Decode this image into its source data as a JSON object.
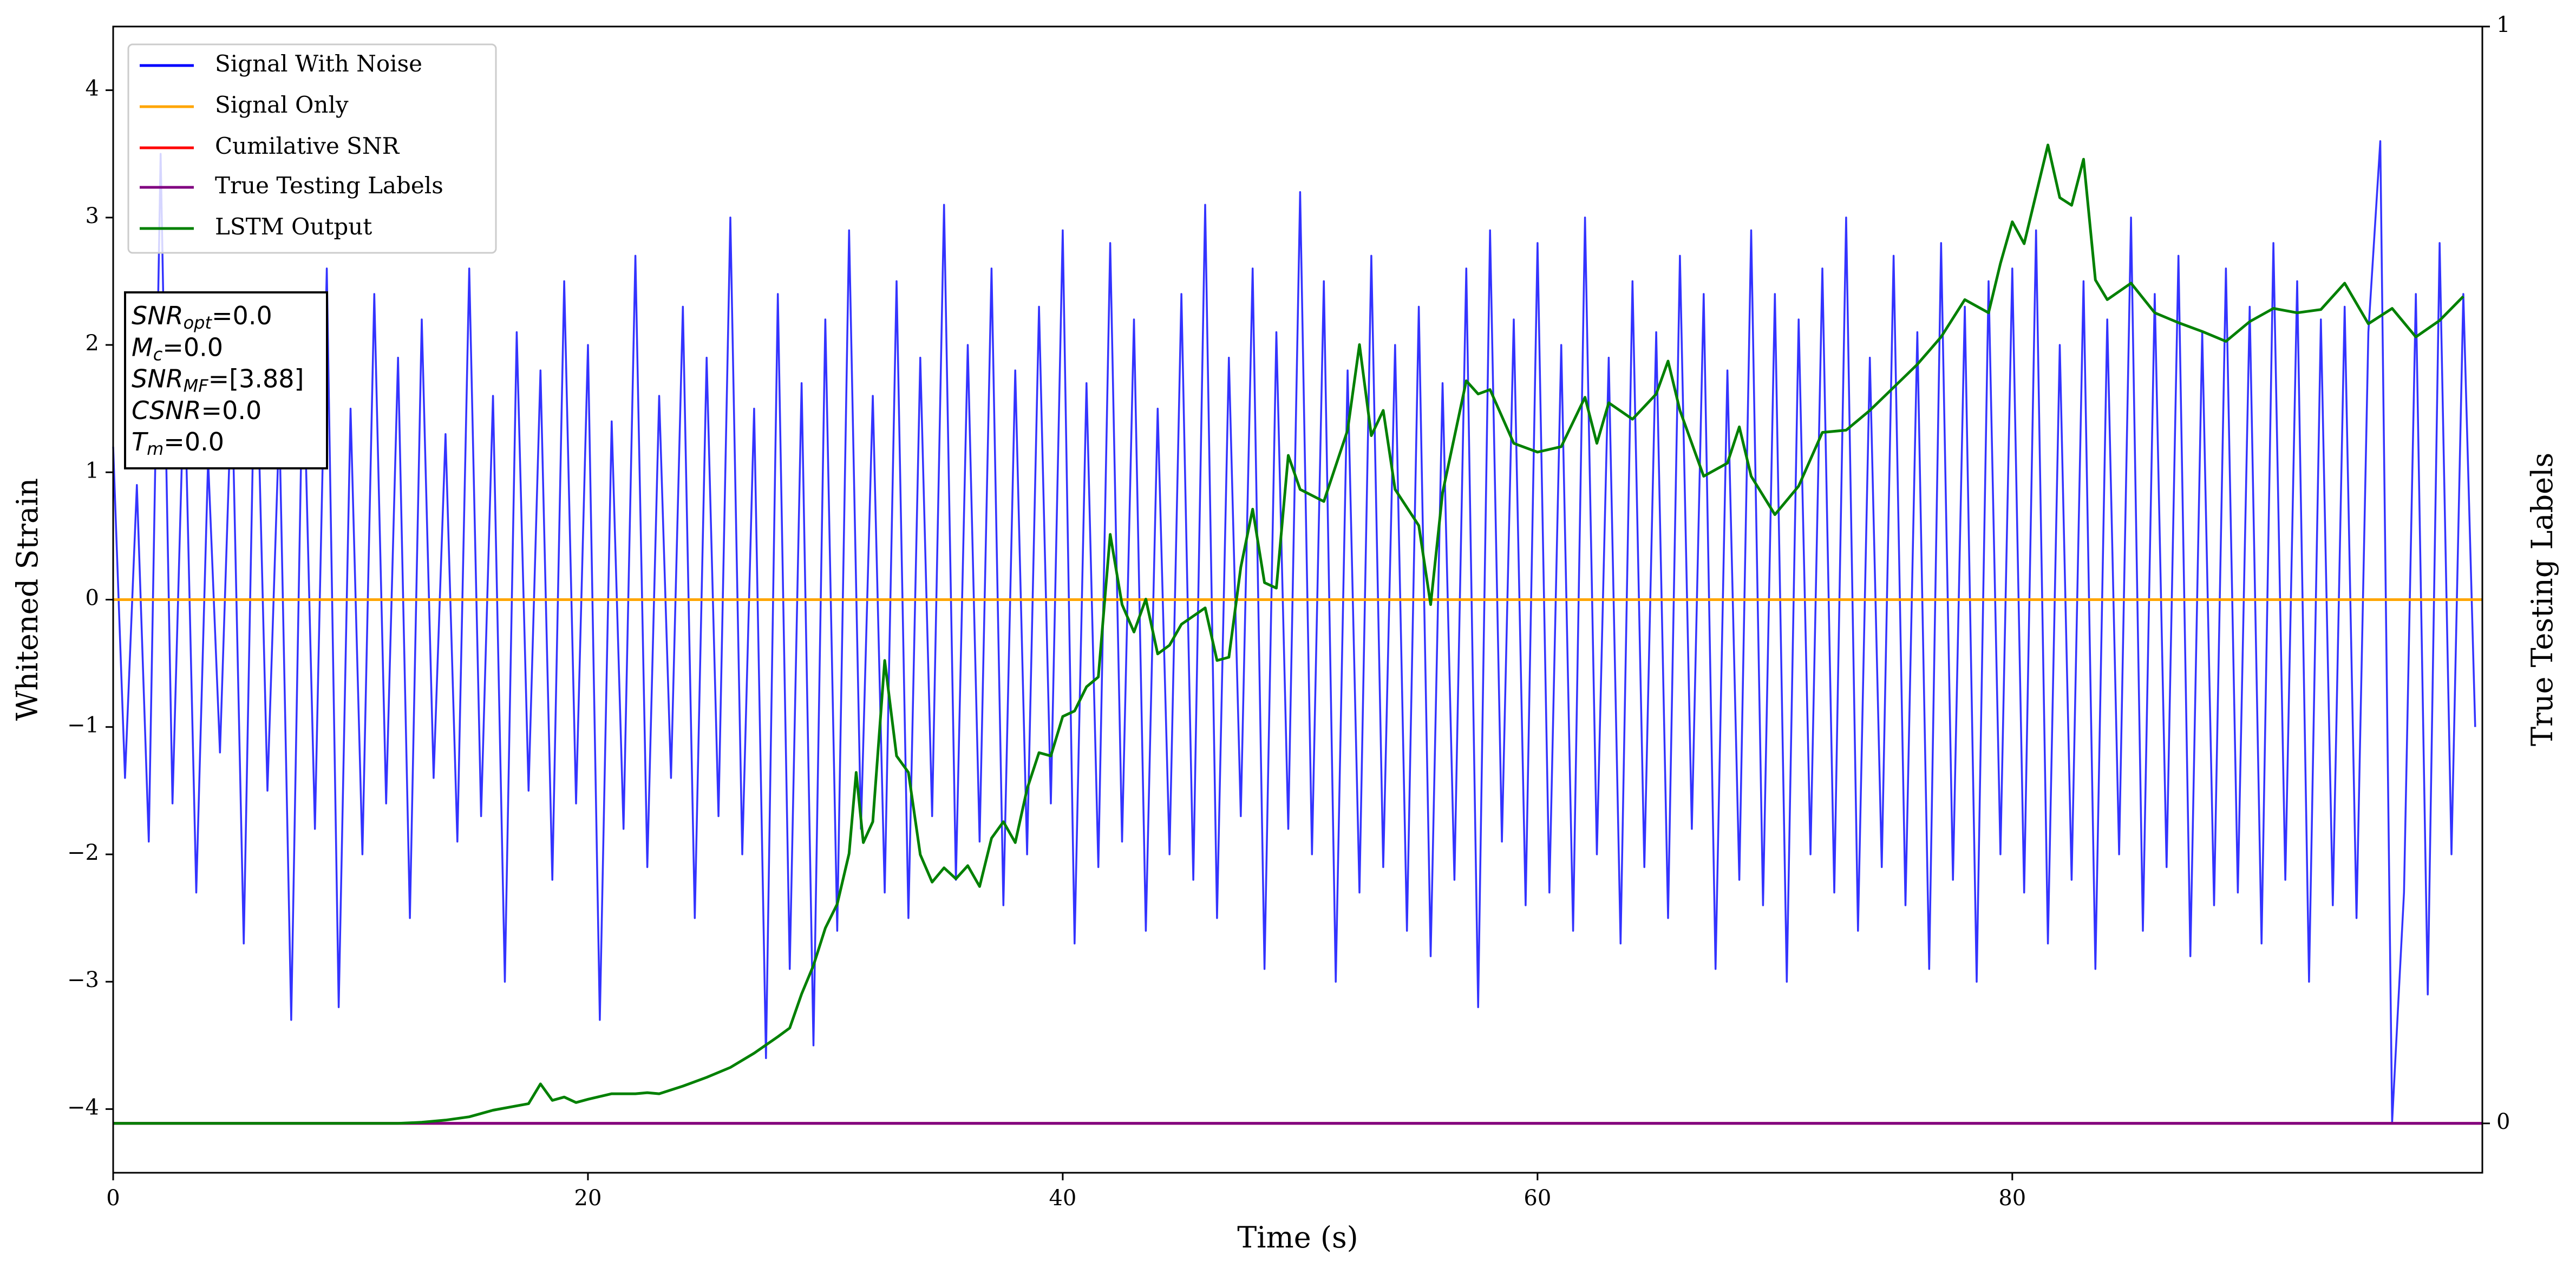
{
  "chart_data": {
    "type": "line",
    "xlabel": "Time (s)",
    "ylabel": "Whitened Strain",
    "y2label": "True Testing Labels",
    "xlim": [
      0,
      99.8
    ],
    "ylim": [
      -4.5,
      4.5
    ],
    "y2lim": [
      -0.045,
      1.0
    ],
    "xticks": [
      0,
      20,
      40,
      60,
      80
    ],
    "yticks": [
      {
        "value": -4,
        "label": "−4"
      },
      {
        "value": -3,
        "label": "−3"
      },
      {
        "value": -2,
        "label": "−2"
      },
      {
        "value": -1,
        "label": "−1"
      },
      0,
      1,
      2,
      3,
      4
    ],
    "y2ticks": [
      0,
      1
    ],
    "legend": "upper left",
    "annotation": [
      {
        "base": "SNR",
        "sub": "opt",
        "text": "=0.0"
      },
      {
        "base": "M",
        "sub": "c",
        "text": "=0.0"
      },
      {
        "base": "SNR",
        "sub": "MF",
        "text": "=[3.88]"
      },
      {
        "base": "CSNR",
        "text": "=0.0"
      },
      {
        "base": "T",
        "sub": "m",
        "text": "=0.0"
      }
    ],
    "series": [
      {
        "name": "Signal With Noise",
        "color": "#0000ff",
        "axis": "y",
        "x": [
          0,
          0.5,
          1,
          1.5,
          2,
          2.5,
          3,
          3.5,
          4,
          4.5,
          5,
          5.5,
          6,
          6.5,
          7,
          7.5,
          8,
          8.5,
          9,
          9.5,
          10,
          10.5,
          11,
          11.5,
          12,
          12.5,
          13,
          13.5,
          14,
          14.5,
          15,
          15.5,
          16,
          16.5,
          17,
          17.5,
          18,
          18.5,
          19,
          19.5,
          20,
          20.5,
          21,
          21.5,
          22,
          22.5,
          23,
          23.5,
          24,
          24.5,
          25,
          25.5,
          26,
          26.5,
          27,
          27.5,
          28,
          28.5,
          29,
          29.5,
          30,
          30.5,
          31,
          31.5,
          32,
          32.5,
          33,
          33.5,
          34,
          34.5,
          35,
          35.5,
          36,
          36.5,
          37,
          37.5,
          38,
          38.5,
          39,
          39.5,
          40,
          40.5,
          41,
          41.5,
          42,
          42.5,
          43,
          43.5,
          44,
          44.5,
          45,
          45.5,
          46,
          46.5,
          47,
          47.5,
          48,
          48.5,
          49,
          49.5,
          50,
          50.5,
          51,
          51.5,
          52,
          52.5,
          53,
          53.5,
          54,
          54.5,
          55,
          55.5,
          56,
          56.5,
          57,
          57.5,
          58,
          58.5,
          59,
          59.5,
          60,
          60.5,
          61,
          61.5,
          62,
          62.5,
          63,
          63.5,
          64,
          64.5,
          65,
          65.5,
          66,
          66.5,
          67,
          67.5,
          68,
          68.5,
          69,
          69.5,
          70,
          70.5,
          71,
          71.5,
          72,
          72.5,
          73,
          73.5,
          74,
          74.5,
          75,
          75.5,
          76,
          76.5,
          77,
          77.5,
          78,
          78.5,
          79,
          79.5,
          80,
          80.5,
          81,
          81.5,
          82,
          82.5,
          83,
          83.5,
          84,
          84.5,
          85,
          85.5,
          86,
          86.5,
          87,
          87.5,
          88,
          88.5,
          89,
          89.5,
          90,
          90.5,
          91,
          91.5,
          92,
          92.5,
          93,
          93.5,
          94,
          94.5,
          95,
          95.5,
          96,
          96.5,
          97,
          97.5,
          98,
          98.5,
          99,
          99.5
        ],
        "values": [
          1.2,
          -1.4,
          0.9,
          -1.9,
          3.5,
          -1.6,
          1.8,
          -2.3,
          1.1,
          -1.2,
          1.7,
          -2.7,
          2.3,
          -1.5,
          1.4,
          -3.3,
          2.0,
          -1.8,
          2.6,
          -3.2,
          1.5,
          -2.0,
          2.4,
          -1.6,
          1.9,
          -2.5,
          2.2,
          -1.4,
          1.3,
          -1.9,
          2.6,
          -1.7,
          1.6,
          -3.0,
          2.1,
          -1.5,
          1.8,
          -2.2,
          2.5,
          -1.6,
          2.0,
          -3.3,
          1.4,
          -1.8,
          2.7,
          -2.1,
          1.6,
          -1.4,
          2.3,
          -2.5,
          1.9,
          -1.7,
          3.0,
          -2.0,
          1.5,
          -3.6,
          2.4,
          -2.9,
          1.7,
          -3.5,
          2.2,
          -2.6,
          2.9,
          -1.8,
          1.6,
          -2.3,
          2.5,
          -2.5,
          1.9,
          -1.7,
          3.1,
          -2.2,
          2.0,
          -1.9,
          2.6,
          -2.4,
          1.8,
          -2.0,
          2.3,
          -1.6,
          2.9,
          -2.7,
          1.7,
          -2.1,
          2.8,
          -1.9,
          2.2,
          -2.6,
          1.5,
          -2.0,
          2.4,
          -2.2,
          3.1,
          -2.5,
          1.9,
          -1.7,
          2.6,
          -2.9,
          2.1,
          -1.8,
          3.2,
          -2.0,
          2.5,
          -3.0,
          1.8,
          -2.3,
          2.7,
          -2.1,
          2.0,
          -2.6,
          2.3,
          -2.8,
          1.7,
          -2.2,
          2.6,
          -3.2,
          2.9,
          -1.9,
          2.2,
          -2.4,
          2.8,
          -2.3,
          2.0,
          -2.6,
          3.0,
          -2.0,
          1.9,
          -2.7,
          2.5,
          -2.1,
          2.1,
          -2.5,
          2.7,
          -1.8,
          2.4,
          -2.9,
          1.8,
          -2.2,
          2.9,
          -2.4,
          2.4,
          -3.0,
          2.2,
          -2.0,
          2.6,
          -2.3,
          3.0,
          -2.6,
          1.9,
          -2.1,
          2.7,
          -2.4,
          2.1,
          -2.9,
          2.8,
          -2.2,
          2.3,
          -3.0,
          2.5,
          -2.0,
          2.6,
          -2.3,
          2.9,
          -2.7,
          2.0,
          -2.2,
          2.5,
          -2.9,
          2.2,
          -2.0,
          3.0,
          -2.6,
          2.4,
          -2.1,
          2.7,
          -2.8,
          2.1,
          -2.4,
          2.6,
          -2.3,
          2.3,
          -2.7,
          2.8,
          -2.2,
          2.5,
          -3.0,
          2.2,
          -2.4,
          2.3,
          -2.5,
          2.1,
          3.6,
          -4.1,
          -2.3,
          2.4,
          -3.1,
          2.8,
          -2.0,
          2.4,
          -1.0
        ]
      },
      {
        "name": "Signal Only",
        "color": "#ffa500",
        "axis": "y",
        "x": [
          0,
          99.8
        ],
        "values": [
          0,
          0
        ]
      },
      {
        "name": "Cumilative SNR",
        "color": "#ff0000",
        "axis": "y2",
        "x": [
          0,
          99.8
        ],
        "values": [
          0,
          0
        ]
      },
      {
        "name": "True Testing Labels",
        "color": "#800080",
        "axis": "y2",
        "x": [
          0,
          99.8
        ],
        "values": [
          0,
          0
        ]
      },
      {
        "name": "LSTM Output",
        "color": "#008000",
        "axis": "y2",
        "x": [
          0,
          12,
          13,
          14,
          15,
          16,
          17,
          17.5,
          18,
          18.5,
          19,
          19.5,
          20,
          21,
          22,
          22.5,
          23,
          24,
          25,
          26,
          27,
          28,
          28.5,
          29,
          29.5,
          30,
          30.5,
          31,
          31.3,
          31.6,
          32,
          32.5,
          33,
          33.5,
          34,
          34.5,
          35,
          35.5,
          36,
          36.5,
          37,
          37.5,
          38,
          38.5,
          39,
          39.5,
          40,
          40.5,
          41,
          41.5,
          42,
          42.5,
          43,
          43.5,
          44,
          44.5,
          45,
          46,
          46.5,
          47,
          47.5,
          48,
          48.5,
          49,
          49.5,
          50,
          51,
          52,
          52.5,
          53,
          53.5,
          54,
          55,
          55.5,
          56,
          57,
          57.5,
          58,
          59,
          60,
          61,
          62,
          62.5,
          63,
          64,
          65,
          65.5,
          66,
          67,
          68,
          68.5,
          69,
          70,
          71,
          72,
          73,
          74,
          75,
          76,
          77,
          78,
          79,
          79.5,
          80,
          80.5,
          81.5,
          82,
          82.5,
          83,
          83.5,
          84,
          85,
          86,
          87,
          88,
          89,
          90,
          91,
          92,
          93,
          94,
          95,
          96,
          97,
          98,
          99
        ],
        "values": [
          0,
          0,
          0.001,
          0.003,
          0.006,
          0.012,
          0.016,
          0.018,
          0.036,
          0.021,
          0.024,
          0.019,
          0.022,
          0.027,
          0.027,
          0.028,
          0.027,
          0.034,
          0.042,
          0.051,
          0.064,
          0.079,
          0.087,
          0.118,
          0.144,
          0.178,
          0.2,
          0.246,
          0.32,
          0.256,
          0.275,
          0.422,
          0.335,
          0.32,
          0.245,
          0.22,
          0.233,
          0.223,
          0.235,
          0.216,
          0.26,
          0.275,
          0.256,
          0.305,
          0.338,
          0.335,
          0.371,
          0.376,
          0.398,
          0.407,
          0.537,
          0.473,
          0.448,
          0.478,
          0.428,
          0.436,
          0.455,
          0.47,
          0.422,
          0.425,
          0.507,
          0.56,
          0.493,
          0.488,
          0.609,
          0.578,
          0.567,
          0.632,
          0.71,
          0.627,
          0.65,
          0.578,
          0.545,
          0.473,
          0.575,
          0.677,
          0.665,
          0.669,
          0.62,
          0.612,
          0.617,
          0.662,
          0.62,
          0.657,
          0.642,
          0.665,
          0.695,
          0.65,
          0.59,
          0.602,
          0.635,
          0.59,
          0.555,
          0.581,
          0.63,
          0.632,
          0.65,
          0.671,
          0.692,
          0.717,
          0.751,
          0.739,
          0.784,
          0.822,
          0.802,
          0.892,
          0.844,
          0.837,
          0.879,
          0.769,
          0.751,
          0.766,
          0.739,
          0.73,
          0.722,
          0.713,
          0.731,
          0.743,
          0.739,
          0.742,
          0.766,
          0.729,
          0.743,
          0.717,
          0.732,
          0.754
        ]
      }
    ]
  }
}
